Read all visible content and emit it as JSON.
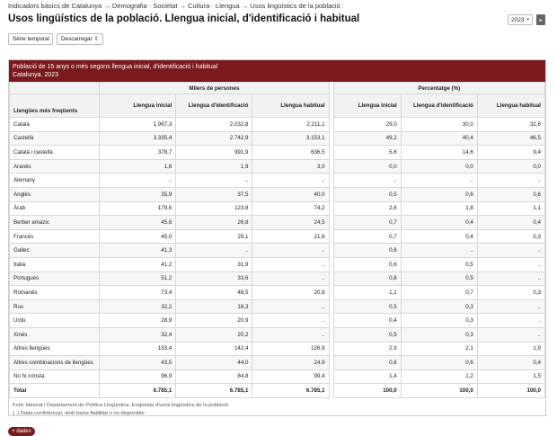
{
  "breadcrumb": "Indicadors bàsics de Catalunya → Demografia · Societat → Cultura · Llengua → Usos lingüístics de la població",
  "page_title": "Usos lingüístics de la població. Llengua inicial, d'identificació i habitual",
  "year_select": {
    "value": "2023",
    "go_label": "▸"
  },
  "buttons": {
    "serie": "Sèrie temporal",
    "descarregar": "Descarregar ⇩"
  },
  "table": {
    "caption_line1": "Població de 15 anys o més segons llengua inicial, d'identificació i habitual",
    "caption_line2": "Catalunya. 2023",
    "group1": "Milers de persones",
    "group2": "Percentatge (%)",
    "row_header": "Llengües més freqüents",
    "col_inicial": "Llengua inicial",
    "col_identificacio": "Llengua d'identificació",
    "col_habitual": "Llengua habitual",
    "rows": [
      {
        "label": "Català",
        "v": [
          "1.967,3",
          "2.032,8",
          "2.211,1",
          "29,0",
          "30,0",
          "32,6"
        ]
      },
      {
        "label": "Castellà",
        "v": [
          "3.335,4",
          "2.742,9",
          "3.153,1",
          "49,2",
          "40,4",
          "46,5"
        ]
      },
      {
        "label": "Català i castellà",
        "v": [
          "378,7",
          "991,9",
          "636,5",
          "5,6",
          "14,6",
          "9,4"
        ]
      },
      {
        "label": "Aranès",
        "v": [
          "1,6",
          "1,9",
          "3,0",
          "0,0",
          "0,0",
          "0,0"
        ]
      },
      {
        "label": "Alemany",
        "v": [
          "..",
          "..",
          "..",
          "..",
          "..",
          ".."
        ]
      },
      {
        "label": "Anglès",
        "v": [
          "35,9",
          "37,5",
          "40,0",
          "0,5",
          "0,6",
          "0,6"
        ]
      },
      {
        "label": "Àrab",
        "v": [
          "179,6",
          "123,8",
          "74,2",
          "2,6",
          "1,8",
          "1,1"
        ]
      },
      {
        "label": "Berber amazic",
        "v": [
          "45,6",
          "26,8",
          "24,5",
          "0,7",
          "0,4",
          "0,4"
        ]
      },
      {
        "label": "Francès",
        "v": [
          "45,0",
          "29,1",
          "21,6",
          "0,7",
          "0,4",
          "0,3"
        ]
      },
      {
        "label": "Gallec",
        "v": [
          "41,3",
          "..",
          "..",
          "0,6",
          "..",
          ".."
        ]
      },
      {
        "label": "Italià",
        "v": [
          "41,2",
          "31,9",
          "..",
          "0,6",
          "0,5",
          ".."
        ]
      },
      {
        "label": "Portuguès",
        "v": [
          "51,2",
          "33,6",
          "..",
          "0,8",
          "0,5",
          ".."
        ]
      },
      {
        "label": "Romanès",
        "v": [
          "73,4",
          "48,5",
          "20,8",
          "1,1",
          "0,7",
          "0,3"
        ]
      },
      {
        "label": "Rus",
        "v": [
          "32,2",
          "18,3",
          "..",
          "0,5",
          "0,3",
          ".."
        ]
      },
      {
        "label": "Urdú",
        "v": [
          "28,9",
          "20,9",
          "..",
          "0,4",
          "0,3",
          ".."
        ]
      },
      {
        "label": "Xinès",
        "v": [
          "32,4",
          "20,2",
          "..",
          "0,5",
          "0,3",
          ".."
        ]
      },
      {
        "label": "Altres llengües",
        "v": [
          "193,4",
          "142,4",
          "126,9",
          "2,9",
          "2,1",
          "1,9"
        ]
      },
      {
        "label": "Altres combinacions de llengües",
        "v": [
          "43,5",
          "44,0",
          "24,9",
          "0,6",
          "0,6",
          "0,4"
        ]
      },
      {
        "label": "No hi consta",
        "v": [
          "96,9",
          "84,8",
          "99,4",
          "1,4",
          "1,2",
          "1,5"
        ]
      }
    ],
    "total": {
      "label": "Total",
      "v": [
        "6.785,1",
        "6.785,1",
        "6.785,1",
        "100,0",
        "100,0",
        "100,0"
      ]
    },
    "footnote1": "Font: Idescat i Departament de Política Lingüística. Enquesta d'usos lingüístics de la població.",
    "footnote2": "(..) Dada confidencial, amb baixa fiabilitat o no disponible."
  },
  "more_button": "+ dades"
}
